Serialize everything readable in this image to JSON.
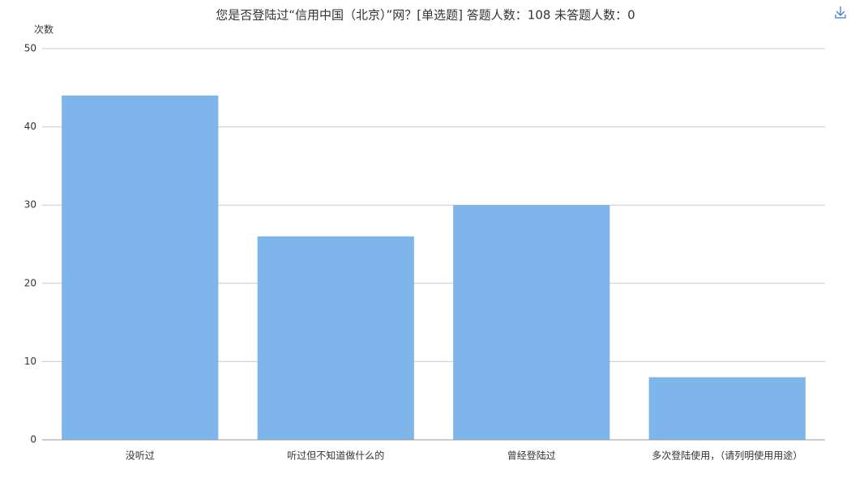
{
  "chart_data": {
    "type": "bar",
    "title": "您是否登陆过“信用中国（北京）”网？[单选题]  答题人数：108  未答题人数：0",
    "y_label": "次数",
    "categories": [
      "没听过",
      "听过但不知道做什么的",
      "曾经登陆过",
      "多次登陆使用，（请列明使用用途）"
    ],
    "values": [
      44,
      26,
      30,
      8
    ],
    "color": "#7eb5ea",
    "ylim": [
      0,
      50
    ],
    "yticks": [
      0,
      10,
      20,
      30,
      40,
      50
    ],
    "grid": true
  }
}
